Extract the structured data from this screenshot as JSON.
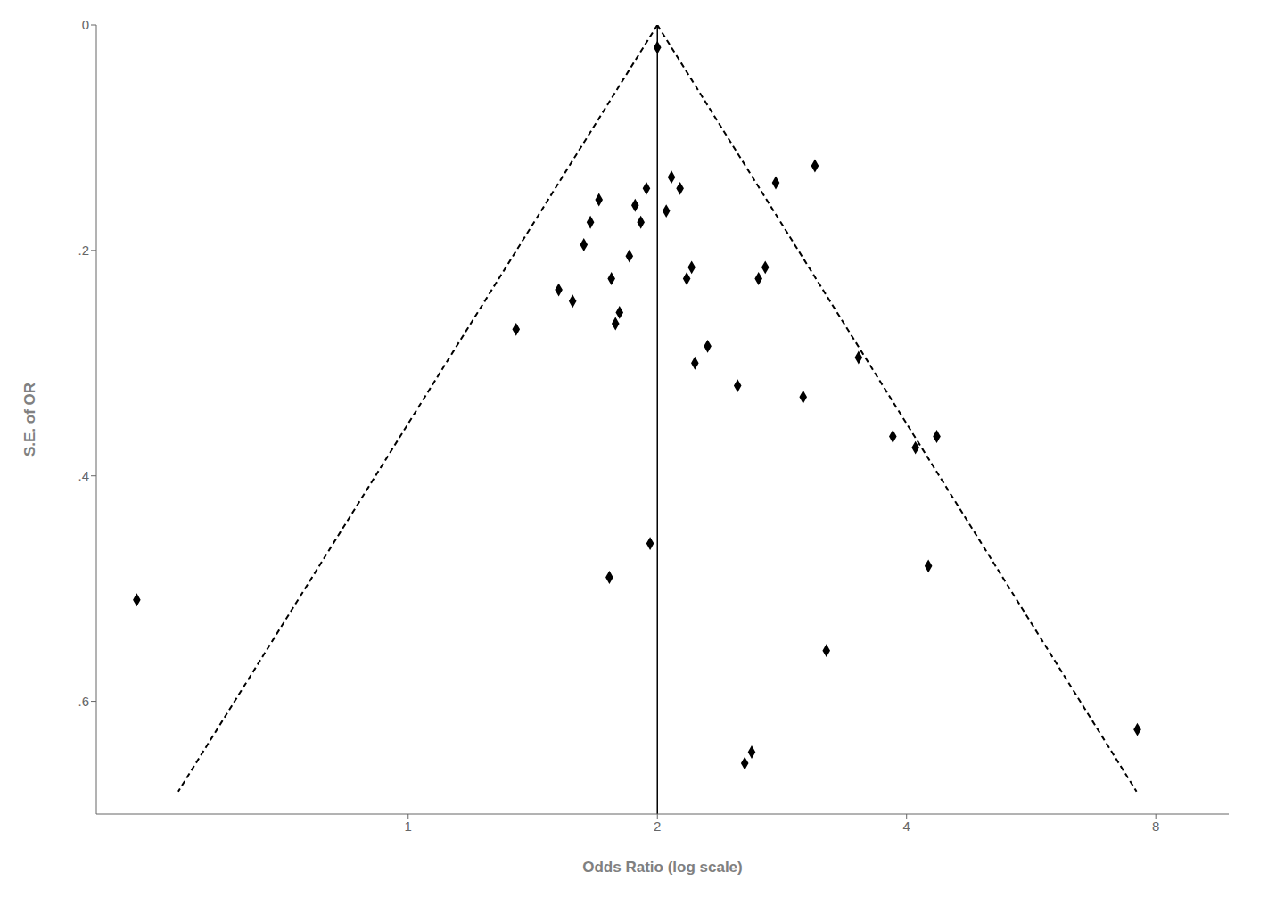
{
  "chart_data": {
    "type": "scatter",
    "title": "",
    "xlabel": "Odds Ratio (log scale)",
    "ylabel": "S.E. of OR",
    "log": "x",
    "grid": false,
    "xlim": [
      0.42,
      9.8
    ],
    "ylim": [
      0.7,
      0.0
    ],
    "xticks": [
      1,
      2,
      4,
      8
    ],
    "yticks": [
      0,
      {
        "value": 0.2,
        "label": ".2"
      },
      {
        "value": 0.4,
        "label": ".4"
      },
      {
        "value": 0.6,
        "label": ".6"
      }
    ],
    "vline": 2.0,
    "vline_color": "#000000",
    "series": [
      {
        "type": "scatter",
        "marker": "diamond",
        "color": "#000000",
        "x": [
          0.47,
          1.35,
          1.52,
          1.58,
          1.63,
          1.66,
          1.7,
          1.75,
          1.76,
          1.78,
          1.8,
          1.85,
          1.88,
          1.91,
          1.94,
          1.96,
          2.0,
          2.05,
          2.08,
          2.13,
          2.17,
          2.2,
          2.22,
          2.3,
          2.5,
          2.65,
          2.7,
          2.78,
          3.0,
          3.1,
          3.2,
          3.5,
          3.85,
          4.1,
          4.25,
          4.35,
          2.6,
          7.6,
          2.55
        ],
        "values": [
          0.51,
          0.27,
          0.235,
          0.245,
          0.195,
          0.175,
          0.155,
          0.49,
          0.225,
          0.265,
          0.255,
          0.205,
          0.16,
          0.175,
          0.145,
          0.46,
          0.02,
          0.165,
          0.135,
          0.145,
          0.225,
          0.215,
          0.3,
          0.285,
          0.32,
          0.225,
          0.215,
          0.14,
          0.33,
          0.125,
          0.555,
          0.295,
          0.365,
          0.375,
          0.48,
          0.365,
          0.645,
          0.625,
          0.655
        ]
      },
      {
        "type": "line",
        "line_style": "dashed",
        "color": "#000000",
        "x": [
          2.0,
          7.583
        ],
        "values": [
          0.0,
          0.68
        ]
      },
      {
        "type": "line",
        "line_style": "dashed",
        "color": "#000000",
        "x": [
          2.0,
          0.5275
        ],
        "values": [
          0.0,
          0.68
        ]
      }
    ]
  }
}
